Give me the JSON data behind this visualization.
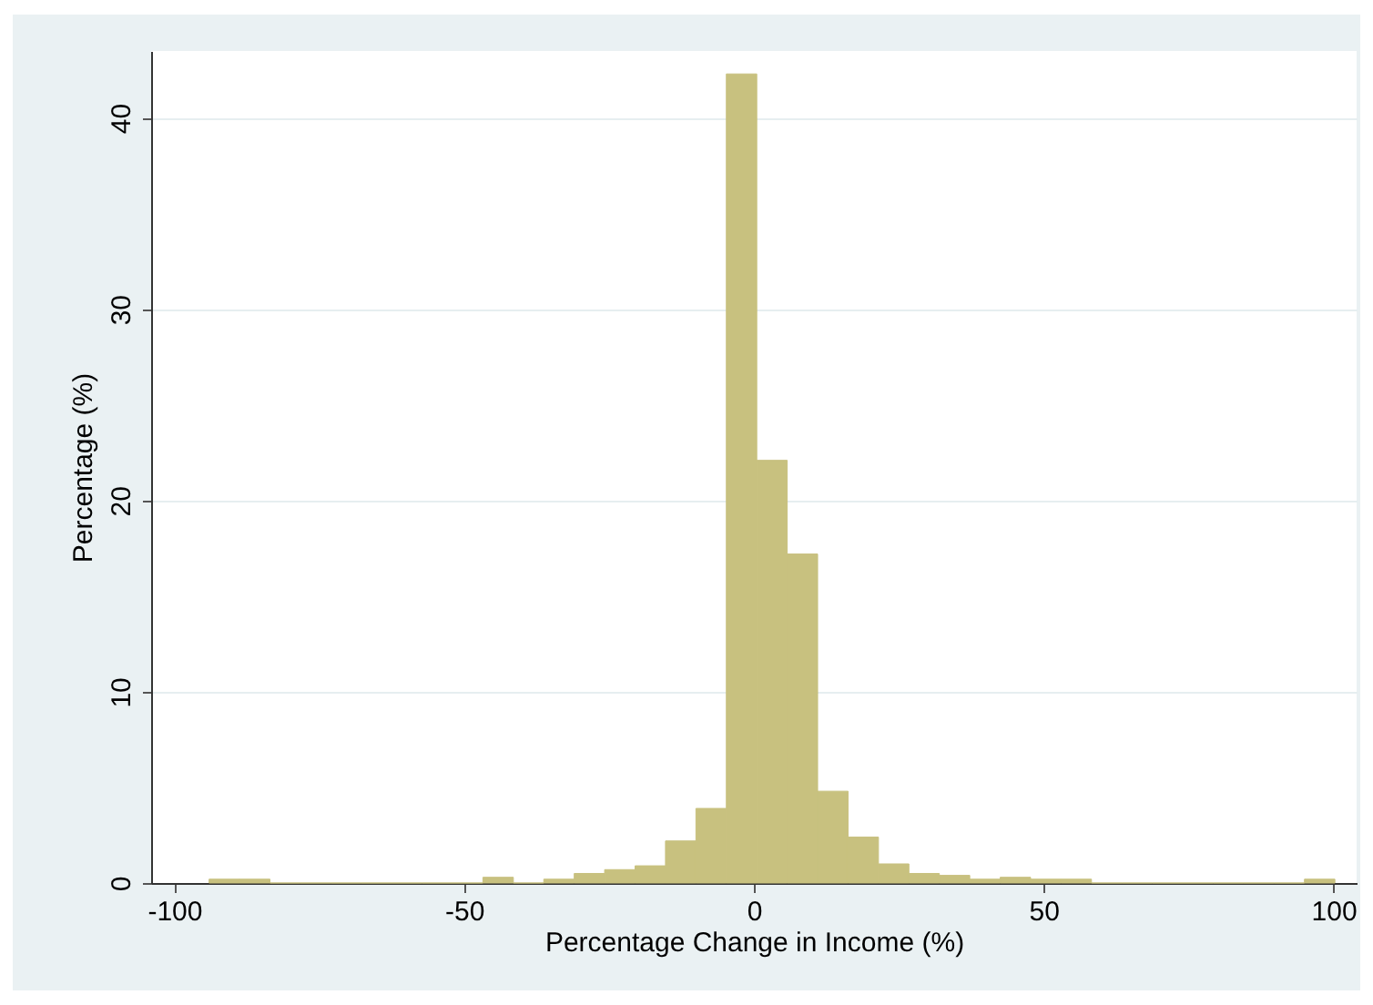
{
  "chart_data": {
    "type": "histogram",
    "xlabel": "Percentage Change in Income (%)",
    "ylabel": "Percentage (%)",
    "bins": [
      -94,
      -88.75,
      -83.5,
      -78.25,
      -73,
      -67.75,
      -62.5,
      -57.25,
      -52,
      -46.75,
      -41.5,
      -36.25,
      -31,
      -25.75,
      -20.5,
      -15.25,
      -10,
      -4.75,
      0.5,
      5.75,
      11,
      16.25,
      21.5,
      26.75,
      32,
      37.25,
      42.5,
      47.75,
      53,
      58.25,
      63.5,
      68.75,
      74,
      79.25,
      84.5,
      89.75,
      95,
      100.25
    ],
    "values": [
      0.2,
      0.2,
      0,
      0,
      0,
      0,
      0,
      0,
      0,
      0.3,
      0,
      0.2,
      0.5,
      0.7,
      0.9,
      2.2,
      3.9,
      42.3,
      22.1,
      17.2,
      4.8,
      2.4,
      1.0,
      0.5,
      0.4,
      0.2,
      0.3,
      0.2,
      0.2,
      0,
      0,
      0,
      0,
      0,
      0,
      0,
      0.2
    ],
    "color": "#c8c17f",
    "xlim": [
      -104,
      104
    ],
    "ylim": [
      0,
      43.5
    ],
    "xticks": [
      -100,
      -50,
      0,
      50,
      100
    ],
    "yticks": [
      0,
      10,
      20,
      30,
      40
    ],
    "grid": "y"
  }
}
